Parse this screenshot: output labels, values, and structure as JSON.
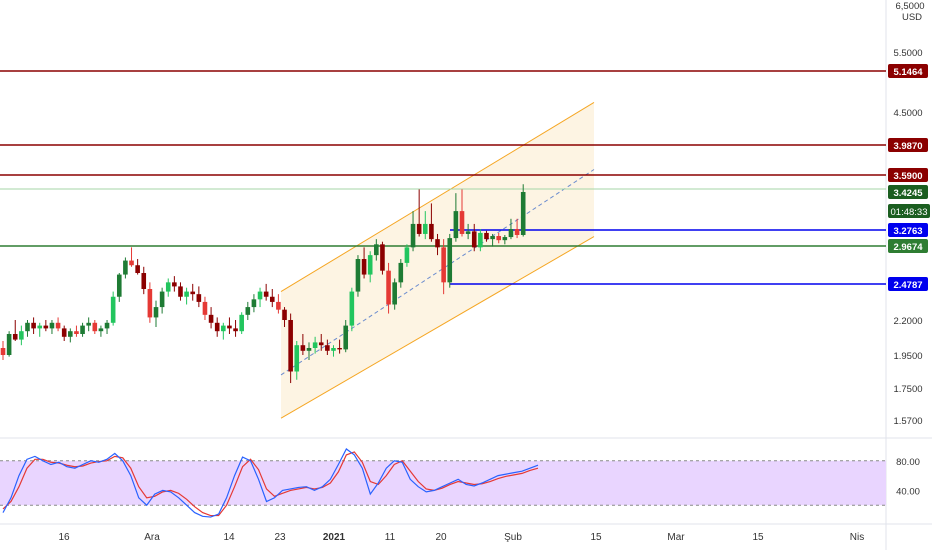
{
  "chart_data": [
    {
      "type": "candlestick",
      "currency": "USD",
      "price_axis_top_label": "6,5000",
      "y_ticks": [
        5.5,
        4.5,
        2.2,
        1.95,
        1.75,
        1.57
      ],
      "y_tick_labels": [
        "5.5000",
        "4.5000",
        "2.2000",
        "1.9500",
        "1.7500",
        "1.5700"
      ],
      "x_tick_labels": [
        "16",
        "Ara",
        "14",
        "23",
        "2021",
        "11",
        "20",
        "Şub",
        "15",
        "Mar",
        "15",
        "Nis"
      ],
      "horizontal_levels": [
        {
          "label": "5.1464",
          "value": 5.1464,
          "color": "#8b0000"
        },
        {
          "label": "3.9870",
          "value": 3.987,
          "color": "#8b0000"
        },
        {
          "label": "3.5900",
          "value": 3.59,
          "color": "#8b0000"
        },
        {
          "label": "3.2763",
          "value": 3.2763,
          "color": "#0000ee"
        },
        {
          "label": "2.9674",
          "value": 2.9674,
          "color": "#2e7d32"
        },
        {
          "label": "2.4787",
          "value": 2.4787,
          "color": "#0000ee"
        }
      ],
      "last_price": {
        "label": "3.4245",
        "value": 3.4245,
        "color": "#1b5e20"
      },
      "countdown": {
        "label": "01:48:33",
        "color": "#1b5e20"
      },
      "channel": {
        "color": "#f5a623",
        "fill": "#fdf1dc"
      },
      "up_color": "#1e7b34",
      "up_color_light": "#22c55e",
      "down_color": "#8b0000",
      "down_color_light": "#e53935",
      "candles": [
        [
          2.0,
          2.05,
          1.92,
          1.95
        ],
        [
          1.95,
          2.12,
          1.94,
          2.1
        ],
        [
          2.1,
          2.2,
          2.05,
          2.06
        ],
        [
          2.06,
          2.16,
          2.02,
          2.12
        ],
        [
          2.12,
          2.2,
          2.08,
          2.18
        ],
        [
          2.18,
          2.22,
          2.1,
          2.14
        ],
        [
          2.14,
          2.18,
          2.08,
          2.16
        ],
        [
          2.16,
          2.2,
          2.12,
          2.14
        ],
        [
          2.14,
          2.2,
          2.1,
          2.18
        ],
        [
          2.18,
          2.22,
          2.12,
          2.14
        ],
        [
          2.14,
          2.16,
          2.05,
          2.08
        ],
        [
          2.08,
          2.14,
          2.04,
          2.12
        ],
        [
          2.12,
          2.16,
          2.08,
          2.1
        ],
        [
          2.1,
          2.18,
          2.08,
          2.16
        ],
        [
          2.16,
          2.22,
          2.12,
          2.18
        ],
        [
          2.18,
          2.2,
          2.1,
          2.12
        ],
        [
          2.12,
          2.16,
          2.08,
          2.14
        ],
        [
          2.14,
          2.2,
          2.1,
          2.18
        ],
        [
          2.18,
          2.42,
          2.16,
          2.38
        ],
        [
          2.38,
          2.62,
          2.34,
          2.6
        ],
        [
          2.6,
          2.82,
          2.55,
          2.78
        ],
        [
          2.78,
          2.95,
          2.7,
          2.72
        ],
        [
          2.72,
          2.8,
          2.6,
          2.62
        ],
        [
          2.62,
          2.7,
          2.4,
          2.44
        ],
        [
          2.44,
          2.5,
          2.18,
          2.22
        ],
        [
          2.22,
          2.35,
          2.15,
          2.3
        ],
        [
          2.3,
          2.45,
          2.25,
          2.42
        ],
        [
          2.42,
          2.55,
          2.38,
          2.5
        ],
        [
          2.5,
          2.58,
          2.42,
          2.46
        ],
        [
          2.46,
          2.5,
          2.35,
          2.38
        ],
        [
          2.38,
          2.45,
          2.32,
          2.42
        ],
        [
          2.42,
          2.48,
          2.35,
          2.4
        ],
        [
          2.4,
          2.46,
          2.3,
          2.34
        ],
        [
          2.34,
          2.38,
          2.2,
          2.24
        ],
        [
          2.24,
          2.3,
          2.14,
          2.18
        ],
        [
          2.18,
          2.22,
          2.08,
          2.12
        ],
        [
          2.12,
          2.18,
          2.06,
          2.16
        ],
        [
          2.16,
          2.22,
          2.1,
          2.14
        ],
        [
          2.14,
          2.2,
          2.08,
          2.12
        ],
        [
          2.12,
          2.26,
          2.1,
          2.24
        ],
        [
          2.24,
          2.34,
          2.2,
          2.3
        ],
        [
          2.3,
          2.4,
          2.26,
          2.36
        ],
        [
          2.36,
          2.45,
          2.3,
          2.42
        ],
        [
          2.42,
          2.48,
          2.35,
          2.38
        ],
        [
          2.38,
          2.44,
          2.3,
          2.34
        ],
        [
          2.34,
          2.4,
          2.25,
          2.28
        ],
        [
          2.28,
          2.3,
          2.15,
          2.2
        ],
        [
          2.2,
          2.25,
          1.78,
          1.85
        ],
        [
          1.85,
          2.05,
          1.8,
          2.02
        ],
        [
          2.02,
          2.1,
          1.95,
          1.98
        ],
        [
          1.98,
          2.04,
          1.92,
          2.0
        ],
        [
          2.0,
          2.08,
          1.96,
          2.04
        ],
        [
          2.04,
          2.1,
          1.98,
          2.02
        ],
        [
          2.02,
          2.06,
          1.95,
          1.98
        ],
        [
          1.98,
          2.02,
          1.94,
          2.0
        ],
        [
          2.0,
          2.06,
          1.96,
          1.99
        ],
        [
          1.99,
          2.2,
          1.97,
          2.16
        ],
        [
          2.16,
          2.45,
          2.12,
          2.42
        ],
        [
          2.42,
          2.85,
          2.38,
          2.8
        ],
        [
          2.8,
          2.95,
          2.55,
          2.6
        ],
        [
          2.6,
          2.9,
          2.5,
          2.85
        ],
        [
          2.85,
          3.1,
          2.78,
          3.0
        ],
        [
          3.0,
          3.05,
          2.6,
          2.65
        ],
        [
          2.65,
          2.75,
          2.25,
          2.32
        ],
        [
          2.32,
          2.55,
          2.28,
          2.5
        ],
        [
          2.5,
          2.8,
          2.45,
          2.75
        ],
        [
          2.75,
          3.0,
          2.7,
          2.95
        ],
        [
          2.95,
          3.35,
          2.9,
          3.3
        ],
        [
          3.3,
          3.45,
          3.15,
          3.2
        ],
        [
          3.2,
          3.35,
          3.1,
          3.3
        ],
        [
          3.3,
          3.38,
          3.05,
          3.1
        ],
        [
          3.1,
          3.2,
          2.85,
          2.95
        ],
        [
          2.95,
          3.1,
          2.4,
          2.5
        ],
        [
          2.5,
          3.2,
          2.45,
          3.12
        ],
        [
          3.12,
          3.42,
          3.05,
          3.35
        ],
        [
          3.35,
          3.45,
          3.15,
          3.2
        ],
        [
          3.2,
          3.3,
          3.1,
          3.25
        ],
        [
          3.25,
          3.3,
          2.9,
          2.95
        ],
        [
          2.95,
          3.28,
          2.9,
          3.22
        ],
        [
          3.22,
          3.26,
          3.05,
          3.1
        ],
        [
          3.1,
          3.2,
          2.96,
          3.16
        ],
        [
          3.16,
          3.22,
          3.02,
          3.08
        ],
        [
          3.08,
          3.18,
          3.0,
          3.14
        ],
        [
          3.14,
          3.32,
          3.1,
          3.28
        ],
        [
          3.28,
          3.32,
          3.12,
          3.18
        ],
        [
          3.18,
          3.5,
          3.15,
          3.4245
        ]
      ],
      "candle_start_index": 0,
      "candle_spacing": 6.12,
      "stoch_rsi": {
        "levels": [
          80,
          20
        ],
        "tick_labels": [
          "80.00",
          "40.00"
        ],
        "k_color": "#2962ff",
        "d_color": "#e53935",
        "band_fill": "#e9d5ff",
        "k": [
          10,
          30,
          60,
          82,
          86,
          80,
          75,
          78,
          72,
          70,
          75,
          80,
          78,
          82,
          90,
          80,
          60,
          30,
          20,
          35,
          40,
          38,
          30,
          20,
          10,
          5,
          4,
          8,
          30,
          60,
          85,
          80,
          55,
          25,
          30,
          40,
          42,
          44,
          45,
          40,
          45,
          55,
          75,
          96,
          88,
          70,
          35,
          50,
          70,
          80,
          78,
          55,
          45,
          38,
          40,
          45,
          50,
          55,
          48,
          46,
          50,
          55,
          60,
          62,
          64,
          66,
          70,
          74
        ],
        "d": [
          15,
          25,
          45,
          70,
          82,
          82,
          78,
          77,
          74,
          72,
          73,
          77,
          79,
          80,
          86,
          84,
          70,
          45,
          30,
          32,
          38,
          40,
          36,
          28,
          18,
          10,
          6,
          6,
          20,
          45,
          72,
          82,
          68,
          42,
          32,
          36,
          40,
          42,
          44,
          42,
          44,
          50,
          65,
          88,
          92,
          78,
          52,
          48,
          60,
          75,
          80,
          66,
          52,
          42,
          40,
          43,
          48,
          52,
          50,
          48,
          49,
          52,
          56,
          59,
          61,
          63,
          67,
          70
        ]
      }
    }
  ]
}
